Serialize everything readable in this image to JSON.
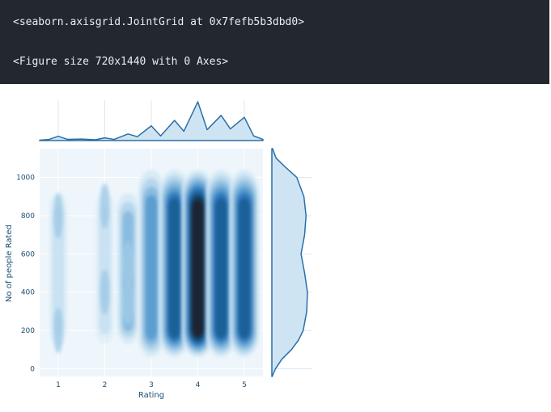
{
  "output": {
    "line1": "<seaborn.axisgrid.JointGrid at 0x7fefb5b3dbd0>",
    "line2": "<Figure size 720x1440 with 0 Axes>"
  },
  "colors": {
    "output_bg": "#23272e",
    "output_text": "#e9eef5",
    "kde_dark": "#1c2530",
    "kde_mid": "#2a78b9",
    "kde_light": "#d6eaf6",
    "margin_line": "#2a6fa8",
    "margin_fill": "#cfe4f3"
  },
  "chart_data": {
    "type": "kde_joint",
    "xlabel": "Rating",
    "ylabel": "No of people Rated",
    "xlim": [
      0.6,
      5.4
    ],
    "ylim": [
      -40,
      1150
    ],
    "xticks": [
      1,
      2,
      3,
      4,
      5
    ],
    "yticks": [
      0,
      200,
      400,
      600,
      800,
      1000
    ],
    "density_bands": [
      {
        "x": 1.0,
        "weight": 0.18,
        "y_peaks": [
          200,
          800
        ]
      },
      {
        "x": 2.0,
        "weight": 0.18,
        "y_peaks": [
          400,
          850
        ]
      },
      {
        "x": 2.5,
        "weight": 0.35,
        "y_peaks": [
          550,
          350
        ]
      },
      {
        "x": 3.0,
        "weight": 0.55,
        "y_peaks": [
          600,
          250
        ]
      },
      {
        "x": 3.5,
        "weight": 0.8,
        "y_peaks": [
          750,
          350
        ]
      },
      {
        "x": 4.0,
        "weight": 1.0,
        "y_peaks": [
          600,
          300
        ]
      },
      {
        "x": 4.5,
        "weight": 0.8,
        "y_peaks": [
          750,
          350
        ]
      },
      {
        "x": 5.0,
        "weight": 0.75,
        "y_peaks": [
          700,
          300
        ]
      }
    ],
    "marginal_x": {
      "x": [
        0.6,
        0.8,
        1.0,
        1.2,
        1.5,
        1.8,
        2.0,
        2.2,
        2.5,
        2.7,
        3.0,
        3.2,
        3.5,
        3.7,
        4.0,
        4.2,
        4.5,
        4.7,
        5.0,
        5.2,
        5.4
      ],
      "density": [
        0.01,
        0.03,
        0.11,
        0.03,
        0.04,
        0.02,
        0.07,
        0.03,
        0.17,
        0.1,
        0.38,
        0.12,
        0.52,
        0.24,
        1.0,
        0.28,
        0.65,
        0.3,
        0.6,
        0.12,
        0.03
      ]
    },
    "marginal_y": {
      "y": [
        -40,
        0,
        50,
        100,
        150,
        200,
        300,
        400,
        500,
        600,
        700,
        800,
        900,
        1000,
        1050,
        1100,
        1150
      ],
      "density": [
        0.01,
        0.1,
        0.28,
        0.55,
        0.75,
        0.88,
        0.98,
        1.0,
        0.92,
        0.82,
        0.92,
        0.96,
        0.9,
        0.7,
        0.4,
        0.12,
        0.02
      ]
    }
  }
}
